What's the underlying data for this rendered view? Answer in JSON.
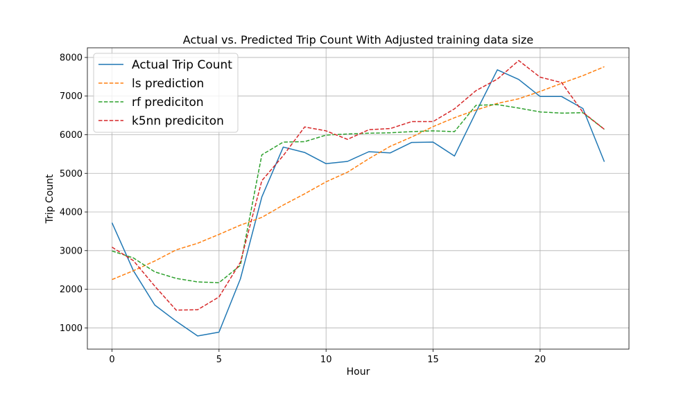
{
  "chart_data": {
    "type": "line",
    "title": "Actual vs. Predicted Trip Count With Adjusted training data size",
    "xlabel": "Hour",
    "ylabel": "Trip Count",
    "xlim": [
      -1.15,
      24.15
    ],
    "ylim": [
      450,
      8250
    ],
    "xticks": [
      0,
      5,
      10,
      15,
      20
    ],
    "yticks": [
      1000,
      2000,
      3000,
      4000,
      5000,
      6000,
      7000,
      8000
    ],
    "grid": true,
    "legend_position": "top-left",
    "x": [
      0,
      1,
      2,
      3,
      4,
      5,
      6,
      7,
      8,
      9,
      10,
      11,
      12,
      13,
      14,
      15,
      16,
      17,
      18,
      19,
      20,
      21,
      22,
      23
    ],
    "series": [
      {
        "name": "Actual Trip Count",
        "color": "#1f77b4",
        "dash": "solid",
        "values": [
          3720,
          2480,
          1590,
          1170,
          790,
          890,
          2270,
          4390,
          5680,
          5540,
          5250,
          5310,
          5560,
          5530,
          5800,
          5810,
          5450,
          6580,
          7680,
          7430,
          6990,
          6990,
          6680,
          5300
        ]
      },
      {
        "name": "ls prediction",
        "color": "#ff7f0e",
        "dash": "dashed",
        "values": [
          2250,
          2480,
          2730,
          3020,
          3190,
          3420,
          3660,
          3860,
          4180,
          4470,
          4780,
          5030,
          5380,
          5700,
          5940,
          6210,
          6440,
          6640,
          6810,
          6930,
          7120,
          7330,
          7530,
          7760
        ]
      },
      {
        "name": "rf prediciton",
        "color": "#2ca02c",
        "dash": "dashed",
        "values": [
          2990,
          2810,
          2450,
          2280,
          2190,
          2170,
          2620,
          5480,
          5810,
          5820,
          5990,
          6020,
          6040,
          6050,
          6080,
          6100,
          6080,
          6760,
          6780,
          6690,
          6590,
          6560,
          6570,
          6140
        ]
      },
      {
        "name": "k5nn prediciton",
        "color": "#d62728",
        "dash": "dashed",
        "values": [
          3090,
          2740,
          2080,
          1460,
          1470,
          1800,
          2700,
          4810,
          5460,
          6200,
          6100,
          5880,
          6130,
          6160,
          6340,
          6340,
          6670,
          7140,
          7440,
          7920,
          7490,
          7350,
          6580,
          6140
        ]
      }
    ]
  }
}
